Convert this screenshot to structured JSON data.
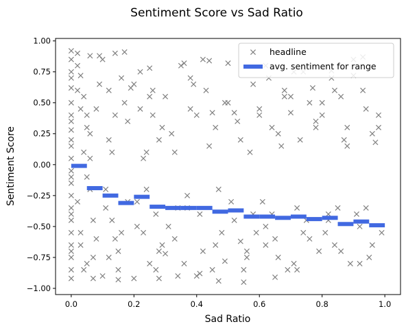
{
  "chart_data": {
    "type": "scatter",
    "title": "Sentiment Score vs Sad Ratio",
    "xlabel": "Sad Ratio",
    "ylabel": "Sentiment Score",
    "xlim": [
      -0.05,
      1.05
    ],
    "ylim": [
      -1.05,
      1.02
    ],
    "xticks": [
      0.0,
      0.2,
      0.4,
      0.6,
      0.8,
      1.0
    ],
    "xtick_labels": [
      "0.0",
      "0.2",
      "0.4",
      "0.6",
      "0.8",
      "1.0"
    ],
    "yticks": [
      -1.0,
      -0.75,
      -0.5,
      -0.25,
      0.0,
      0.25,
      0.5,
      0.75,
      1.0
    ],
    "ytick_labels": [
      "−1.00",
      "−0.75",
      "−0.50",
      "−0.25",
      "0.00",
      "0.25",
      "0.50",
      "0.75",
      "1.00"
    ],
    "grid": false,
    "legend_position": "top-right",
    "series": [
      {
        "name": "headline",
        "marker": "x",
        "color": "#808080",
        "note_points": "dense cloud; sample of representative points",
        "x": [
          0.0,
          0.0,
          0.0,
          0.0,
          0.0,
          0.0,
          0.0,
          0.0,
          0.0,
          0.0,
          0.0,
          0.0,
          0.0,
          0.0,
          0.0,
          0.0,
          0.0,
          0.0,
          0.0,
          0.0,
          0.0,
          0.0,
          0.0,
          0.0,
          0.0,
          0.02,
          0.03,
          0.04,
          0.05,
          0.06,
          0.02,
          0.03,
          0.05,
          0.07,
          0.02,
          0.04,
          0.06,
          0.08,
          0.03,
          0.05,
          0.07,
          0.09,
          0.04,
          0.06,
          0.08,
          0.02,
          0.05,
          0.07,
          0.03,
          0.06,
          0.1,
          0.12,
          0.14,
          0.11,
          0.13,
          0.15,
          0.1,
          0.12,
          0.14,
          0.16,
          0.11,
          0.13,
          0.15,
          0.17,
          0.18,
          0.19,
          0.12,
          0.16,
          0.18,
          0.14,
          0.2,
          0.22,
          0.24,
          0.21,
          0.23,
          0.25,
          0.26,
          0.27,
          0.28,
          0.29,
          0.2,
          0.22,
          0.24,
          0.26,
          0.28,
          0.21,
          0.25,
          0.27,
          0.23,
          0.29,
          0.3,
          0.32,
          0.34,
          0.33,
          0.35,
          0.36,
          0.38,
          0.31,
          0.37,
          0.39,
          0.4,
          0.42,
          0.44,
          0.41,
          0.43,
          0.45,
          0.46,
          0.48,
          0.47,
          0.49,
          0.3,
          0.34,
          0.38,
          0.42,
          0.46,
          0.33,
          0.37,
          0.41,
          0.45,
          0.49,
          0.5,
          0.52,
          0.54,
          0.56,
          0.58,
          0.51,
          0.53,
          0.55,
          0.57,
          0.59,
          0.5,
          0.54,
          0.58,
          0.52,
          0.56,
          0.6,
          0.62,
          0.64,
          0.66,
          0.68,
          0.61,
          0.63,
          0.65,
          0.67,
          0.69,
          0.6,
          0.64,
          0.68,
          0.62,
          0.66,
          0.7,
          0.72,
          0.74,
          0.76,
          0.78,
          0.71,
          0.73,
          0.75,
          0.77,
          0.79,
          0.7,
          0.74,
          0.78,
          0.72,
          0.76,
          0.8,
          0.82,
          0.84,
          0.86,
          0.88,
          0.81,
          0.83,
          0.85,
          0.87,
          0.89,
          0.8,
          0.84,
          0.88,
          0.82,
          0.86,
          0.9,
          0.92,
          0.94,
          0.96,
          0.98,
          0.91,
          0.93,
          0.95,
          0.97,
          0.99,
          0.9,
          0.94,
          0.98,
          0.92,
          0.96,
          0.17,
          0.36,
          0.44,
          0.09,
          0.25,
          0.62,
          0.71,
          0.83,
          0.93,
          0.55,
          0.4,
          0.28,
          0.15,
          0.65,
          0.47
        ],
        "y": [
          0.92,
          0.85,
          0.75,
          0.62,
          0.5,
          0.4,
          0.28,
          0.15,
          0.05,
          -0.05,
          -0.15,
          -0.25,
          -0.35,
          -0.45,
          -0.55,
          -0.65,
          -0.75,
          -0.85,
          -0.92,
          0.7,
          0.35,
          -0.1,
          -0.4,
          -0.7,
          0.2,
          0.9,
          0.72,
          0.55,
          0.4,
          0.88,
          -0.3,
          -0.55,
          -0.8,
          -0.92,
          0.6,
          0.1,
          -0.2,
          0.45,
          -0.65,
          0.3,
          -0.45,
          0.65,
          -0.85,
          0.25,
          -0.6,
          0.8,
          -0.1,
          -0.75,
          0.45,
          0.05,
          0.85,
          0.6,
          0.4,
          -0.2,
          -0.45,
          -0.7,
          -0.9,
          0.2,
          -0.6,
          0.7,
          -0.35,
          0.1,
          -0.85,
          0.5,
          -0.3,
          0.62,
          -0.75,
          -0.55,
          0.35,
          0.9,
          0.65,
          0.45,
          0.1,
          -0.3,
          -0.55,
          -0.8,
          0.6,
          -0.4,
          0.2,
          -0.65,
          -0.92,
          0.75,
          -0.2,
          0.4,
          -0.7,
          -0.5,
          0.55,
          -0.85,
          0.05,
          0.3,
          0.55,
          0.25,
          -0.35,
          -0.6,
          0.8,
          -0.8,
          0.45,
          -0.5,
          -0.25,
          0.65,
          0.4,
          -0.7,
          0.15,
          -0.4,
          0.6,
          -0.85,
          0.3,
          -0.55,
          -0.2,
          0.5,
          -0.72,
          -0.9,
          0.7,
          0.85,
          -0.65,
          0.1,
          -0.35,
          -0.88,
          0.42,
          -0.78,
          0.5,
          -0.45,
          0.2,
          -0.7,
          0.65,
          -0.3,
          0.35,
          -0.85,
          0.1,
          -0.55,
          0.82,
          -0.62,
          -0.4,
          0.42,
          -0.75,
          0.45,
          -0.5,
          0.3,
          -0.75,
          0.6,
          -0.3,
          0.7,
          -0.6,
          0.15,
          -0.85,
          0.4,
          -0.4,
          0.55,
          -0.65,
          0.25,
          0.55,
          -0.35,
          0.75,
          -0.6,
          0.35,
          -0.8,
          0.2,
          -0.45,
          0.62,
          -0.7,
          0.42,
          -0.55,
          0.3,
          -0.85,
          0.5,
          0.4,
          -0.4,
          0.6,
          -0.7,
          0.3,
          -0.55,
          0.7,
          -0.35,
          0.2,
          -0.8,
          0.5,
          -0.65,
          0.15,
          -0.45,
          0.55,
          0.72,
          -0.5,
          0.45,
          -0.65,
          0.3,
          -0.4,
          0.6,
          -0.75,
          0.18,
          -0.55,
          0.85,
          -0.35,
          0.4,
          -0.8,
          0.25,
          0.91,
          0.82,
          0.84,
          0.88,
          0.78,
          0.8,
          0.75,
          0.76,
          0.87,
          -0.95,
          -0.9,
          -0.92,
          -0.93,
          -0.91,
          -0.94
        ]
      },
      {
        "name": "avg. sentiment for range",
        "color": "#4169e1",
        "segments": [
          {
            "x": [
              0.0,
              0.05
            ],
            "y": -0.01
          },
          {
            "x": [
              0.05,
              0.1
            ],
            "y": -0.19
          },
          {
            "x": [
              0.1,
              0.15
            ],
            "y": -0.25
          },
          {
            "x": [
              0.15,
              0.2
            ],
            "y": -0.31
          },
          {
            "x": [
              0.2,
              0.25
            ],
            "y": -0.26
          },
          {
            "x": [
              0.25,
              0.3
            ],
            "y": -0.34
          },
          {
            "x": [
              0.3,
              0.35
            ],
            "y": -0.35
          },
          {
            "x": [
              0.35,
              0.4
            ],
            "y": -0.35
          },
          {
            "x": [
              0.4,
              0.45
            ],
            "y": -0.35
          },
          {
            "x": [
              0.45,
              0.5
            ],
            "y": -0.38
          },
          {
            "x": [
              0.5,
              0.55
            ],
            "y": -0.37
          },
          {
            "x": [
              0.55,
              0.6
            ],
            "y": -0.42
          },
          {
            "x": [
              0.6,
              0.65
            ],
            "y": -0.42
          },
          {
            "x": [
              0.65,
              0.7
            ],
            "y": -0.43
          },
          {
            "x": [
              0.7,
              0.75
            ],
            "y": -0.42
          },
          {
            "x": [
              0.75,
              0.8
            ],
            "y": -0.44
          },
          {
            "x": [
              0.8,
              0.85
            ],
            "y": -0.43
          },
          {
            "x": [
              0.85,
              0.9
            ],
            "y": -0.48
          },
          {
            "x": [
              0.9,
              0.95
            ],
            "y": -0.46
          },
          {
            "x": [
              0.95,
              1.0
            ],
            "y": -0.49
          }
        ]
      }
    ]
  }
}
